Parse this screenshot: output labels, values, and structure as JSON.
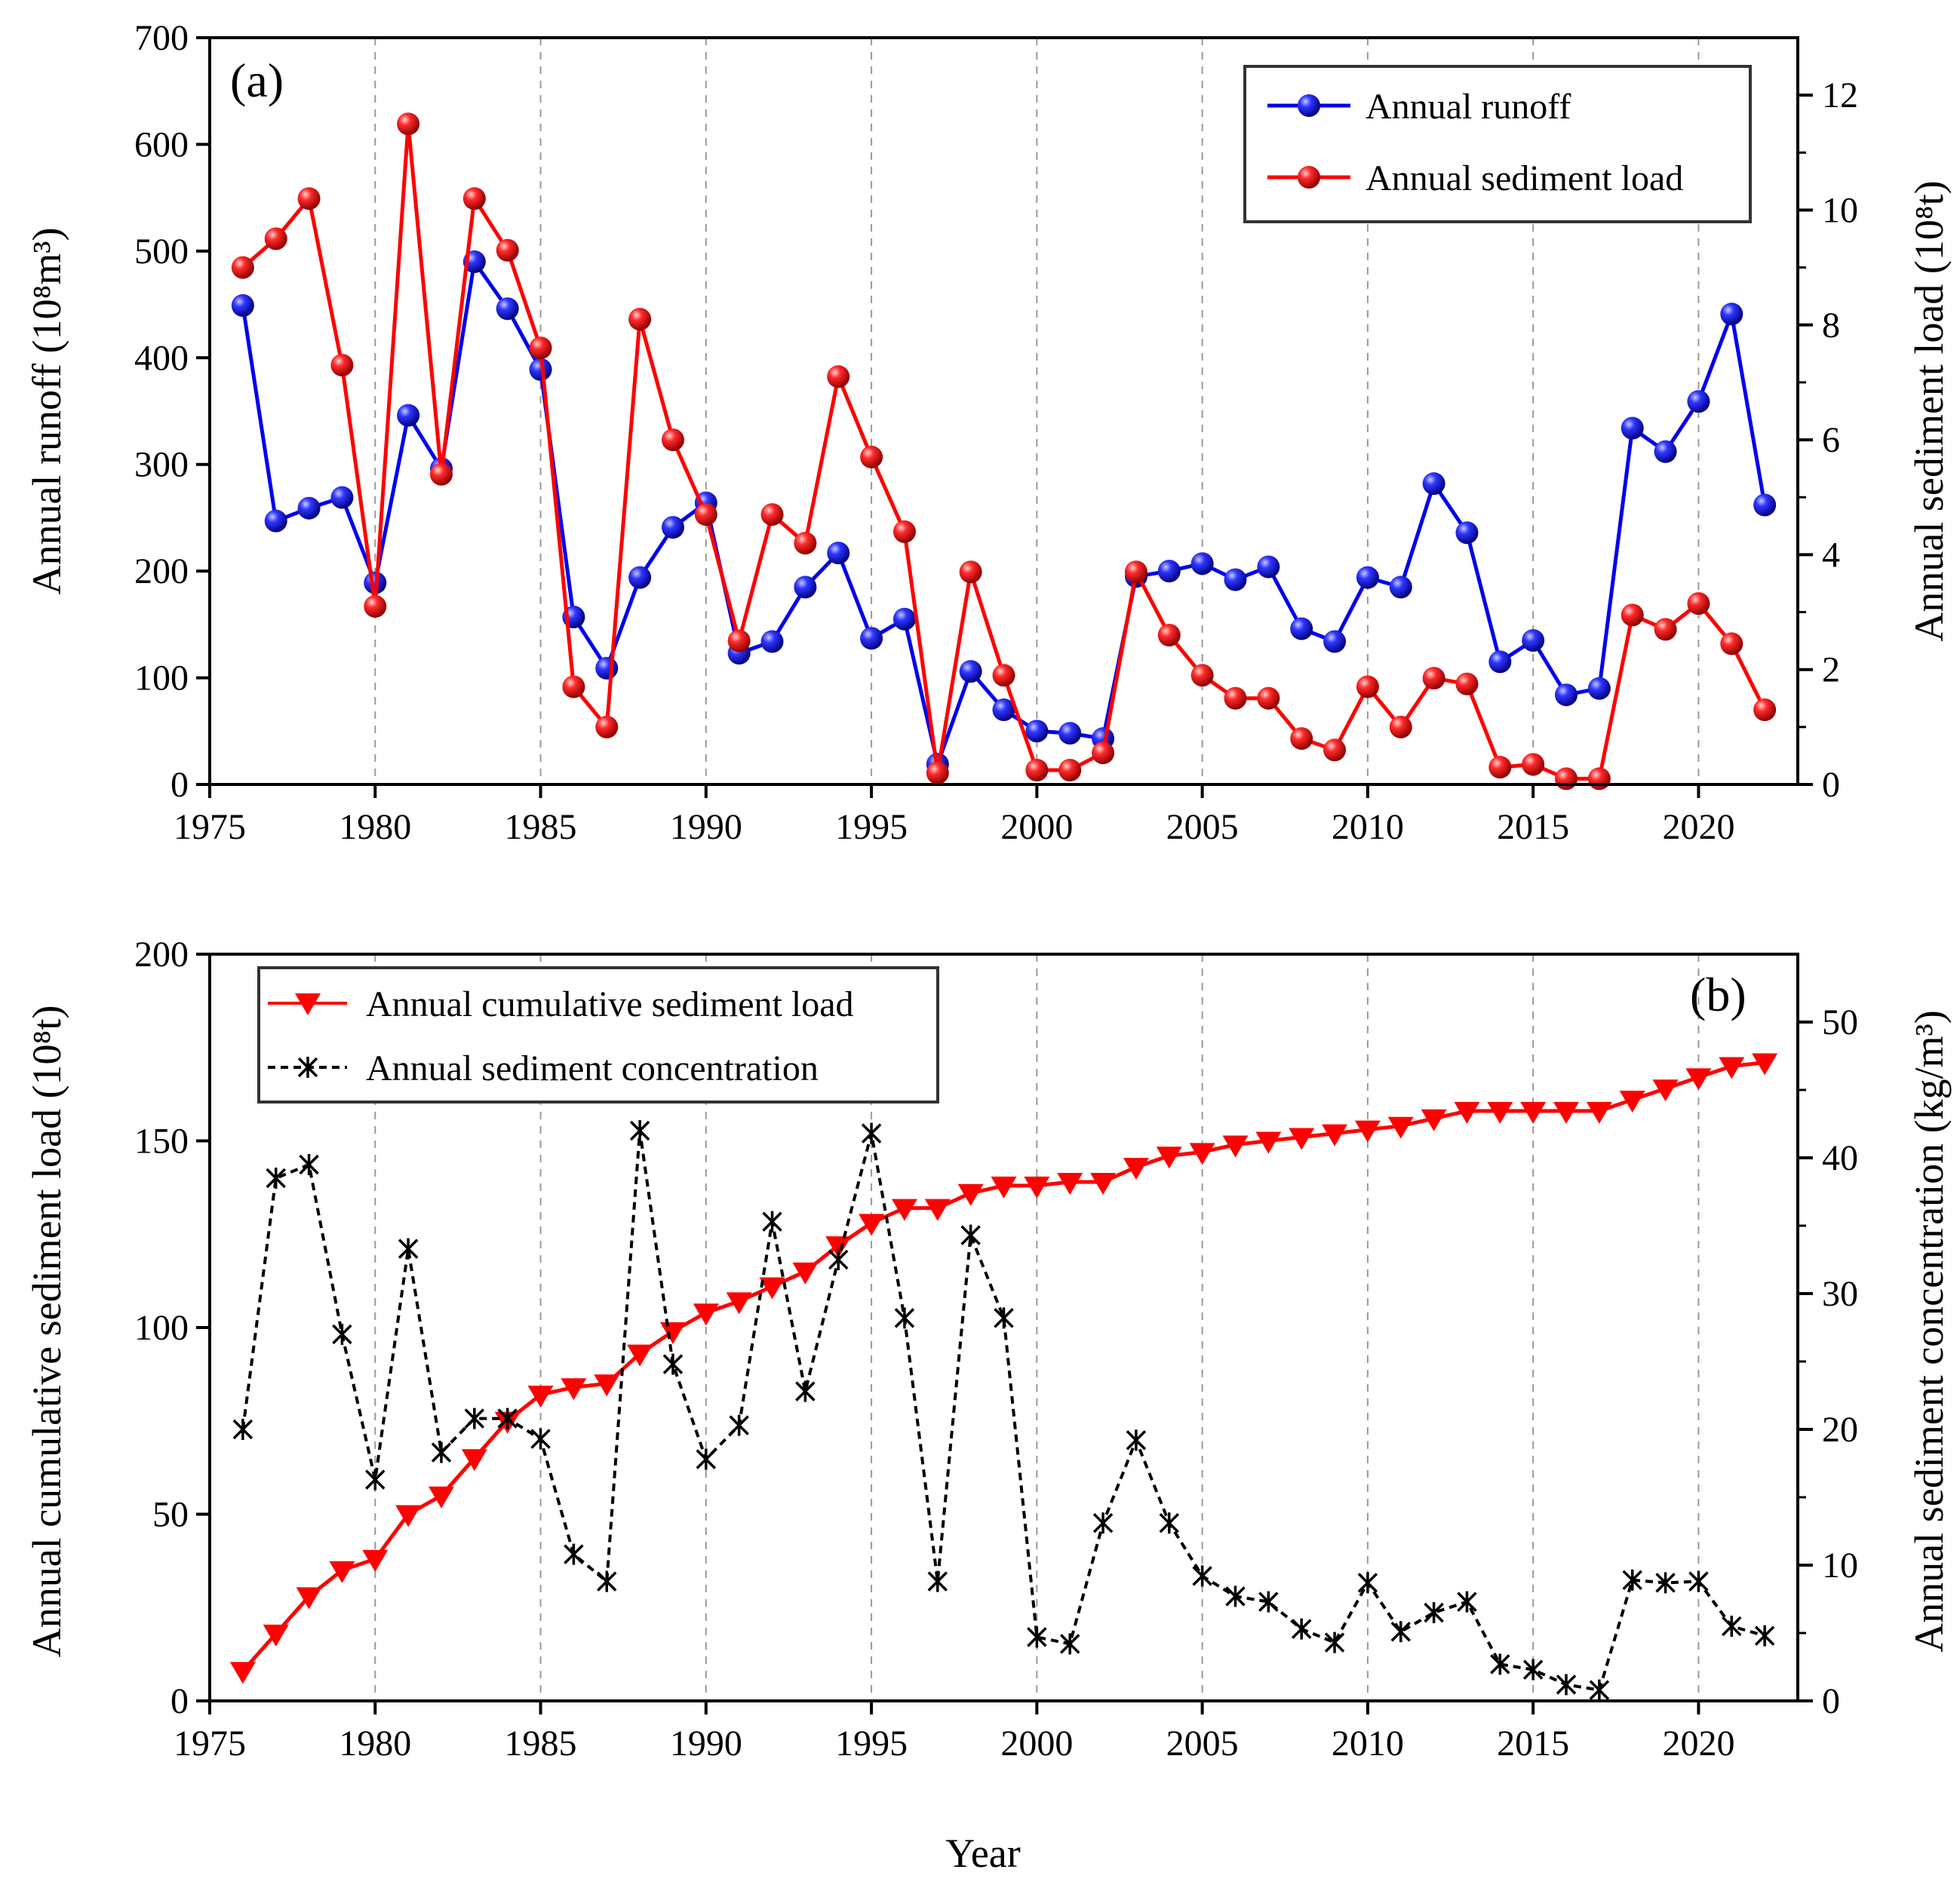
{
  "figure": {
    "xlabel": "Year"
  },
  "chart_data": [
    {
      "type": "line",
      "panel_label": "(a)",
      "xlabel": "",
      "ylabel": "Annual  runoff (10⁸m³)",
      "y2label": "Annual  sediment load (10⁸t)",
      "xlim": [
        1975,
        2023
      ],
      "ylim": [
        0,
        700
      ],
      "y2lim": [
        0,
        13
      ],
      "xticks": [
        1975,
        1980,
        1985,
        1990,
        1995,
        2000,
        2005,
        2010,
        2015,
        2020
      ],
      "yticks": [
        0,
        100,
        200,
        300,
        400,
        500,
        600,
        700
      ],
      "y2ticks": [
        0,
        2,
        4,
        6,
        8,
        10,
        12
      ],
      "vgrid": [
        1980,
        1985,
        1990,
        1995,
        2000,
        2005,
        2010,
        2015,
        2020
      ],
      "legend_position": "top-right",
      "x": [
        1976,
        1977,
        1978,
        1979,
        1980,
        1981,
        1982,
        1983,
        1984,
        1985,
        1986,
        1987,
        1988,
        1989,
        1990,
        1991,
        1992,
        1993,
        1994,
        1995,
        1996,
        1997,
        1998,
        1999,
        2000,
        2001,
        2002,
        2003,
        2004,
        2005,
        2006,
        2007,
        2008,
        2009,
        2010,
        2011,
        2012,
        2013,
        2014,
        2015,
        2016,
        2017,
        2018,
        2019,
        2020,
        2021,
        2022
      ],
      "series": [
        {
          "name": "Annual runoff",
          "axis": "left",
          "color": "#0000ee",
          "marker": "sphere",
          "values": [
            449,
            247,
            259,
            269,
            189,
            346,
            296,
            490,
            446,
            389,
            157,
            109,
            194,
            241,
            264,
            123,
            134,
            185,
            217,
            137,
            155,
            19,
            106,
            70,
            50,
            48,
            43,
            195,
            200,
            207,
            192,
            204,
            146,
            134,
            194,
            185,
            282,
            236,
            115,
            135,
            84,
            90,
            334,
            312,
            359,
            441,
            262
          ]
        },
        {
          "name": "Annual  sediment load",
          "axis": "right",
          "color": "#ff0000",
          "marker": "sphere",
          "values": [
            9.0,
            9.5,
            10.2,
            7.3,
            3.1,
            11.5,
            5.4,
            10.2,
            9.3,
            7.6,
            1.7,
            1.0,
            8.1,
            6.0,
            4.7,
            2.5,
            4.7,
            4.2,
            7.1,
            5.7,
            4.4,
            0.2,
            3.7,
            1.9,
            0.25,
            0.25,
            0.55,
            3.7,
            2.6,
            1.9,
            1.5,
            1.5,
            0.8,
            0.6,
            1.7,
            1.0,
            1.85,
            1.75,
            0.3,
            0.35,
            0.1,
            0.1,
            2.95,
            2.7,
            3.15,
            2.45,
            1.3
          ]
        }
      ]
    },
    {
      "type": "line",
      "panel_label": "(b)",
      "xlabel": "Year",
      "ylabel": "Annual cumulative sediment load (10⁸t)",
      "y2label": "Annual sediment concentration (kg/m³)",
      "xlim": [
        1975,
        2023
      ],
      "ylim": [
        0,
        200
      ],
      "y2lim": [
        0,
        55
      ],
      "xticks": [
        1975,
        1980,
        1985,
        1990,
        1995,
        2000,
        2005,
        2010,
        2015,
        2020
      ],
      "yticks": [
        0,
        50,
        100,
        150,
        200
      ],
      "y2ticks": [
        0,
        10,
        20,
        30,
        40,
        50
      ],
      "vgrid": [
        1980,
        1985,
        1990,
        1995,
        2000,
        2005,
        2010,
        2015,
        2020
      ],
      "legend_position": "top-left",
      "x": [
        1976,
        1977,
        1978,
        1979,
        1980,
        1981,
        1982,
        1983,
        1984,
        1985,
        1986,
        1987,
        1988,
        1989,
        1990,
        1991,
        1992,
        1993,
        1994,
        1995,
        1996,
        1997,
        1998,
        1999,
        2000,
        2001,
        2002,
        2003,
        2004,
        2005,
        2006,
        2007,
        2008,
        2009,
        2010,
        2011,
        2012,
        2013,
        2014,
        2015,
        2016,
        2017,
        2018,
        2019,
        2020,
        2021,
        2022
      ],
      "series": [
        {
          "name": "Annual cumulative sediment load",
          "axis": "left",
          "color": "#ff0000",
          "marker": "triangle-down",
          "line": "solid",
          "values": [
            8,
            18,
            28,
            35,
            38,
            50,
            55,
            65,
            75,
            82,
            84,
            85,
            93,
            99,
            104,
            107,
            111,
            115,
            122,
            128,
            132,
            132,
            136,
            138,
            138,
            139,
            139,
            143,
            146,
            147,
            149,
            150,
            151,
            152,
            153,
            154,
            156,
            158,
            158,
            158,
            158,
            158,
            161,
            164,
            167,
            170,
            171
          ]
        },
        {
          "name": "Annual sediment concentration",
          "axis": "right",
          "color": "#000000",
          "marker": "asterisk",
          "line": "dashed",
          "values": [
            20,
            38.5,
            39.5,
            27,
            16.3,
            33.3,
            18.3,
            20.8,
            20.8,
            19.3,
            10.8,
            8.8,
            42,
            24.8,
            17.8,
            20.3,
            35.3,
            22.8,
            32.5,
            41.8,
            28.2,
            8.8,
            34.3,
            28.2,
            4.7,
            4.2,
            13.1,
            19.2,
            13.1,
            9.2,
            7.7,
            7.3,
            5.3,
            4.3,
            8.7,
            5.1,
            6.5,
            7.3,
            2.7,
            2.3,
            1.2,
            0.8,
            8.9,
            8.7,
            8.8,
            5.5,
            4.8
          ]
        }
      ]
    }
  ]
}
